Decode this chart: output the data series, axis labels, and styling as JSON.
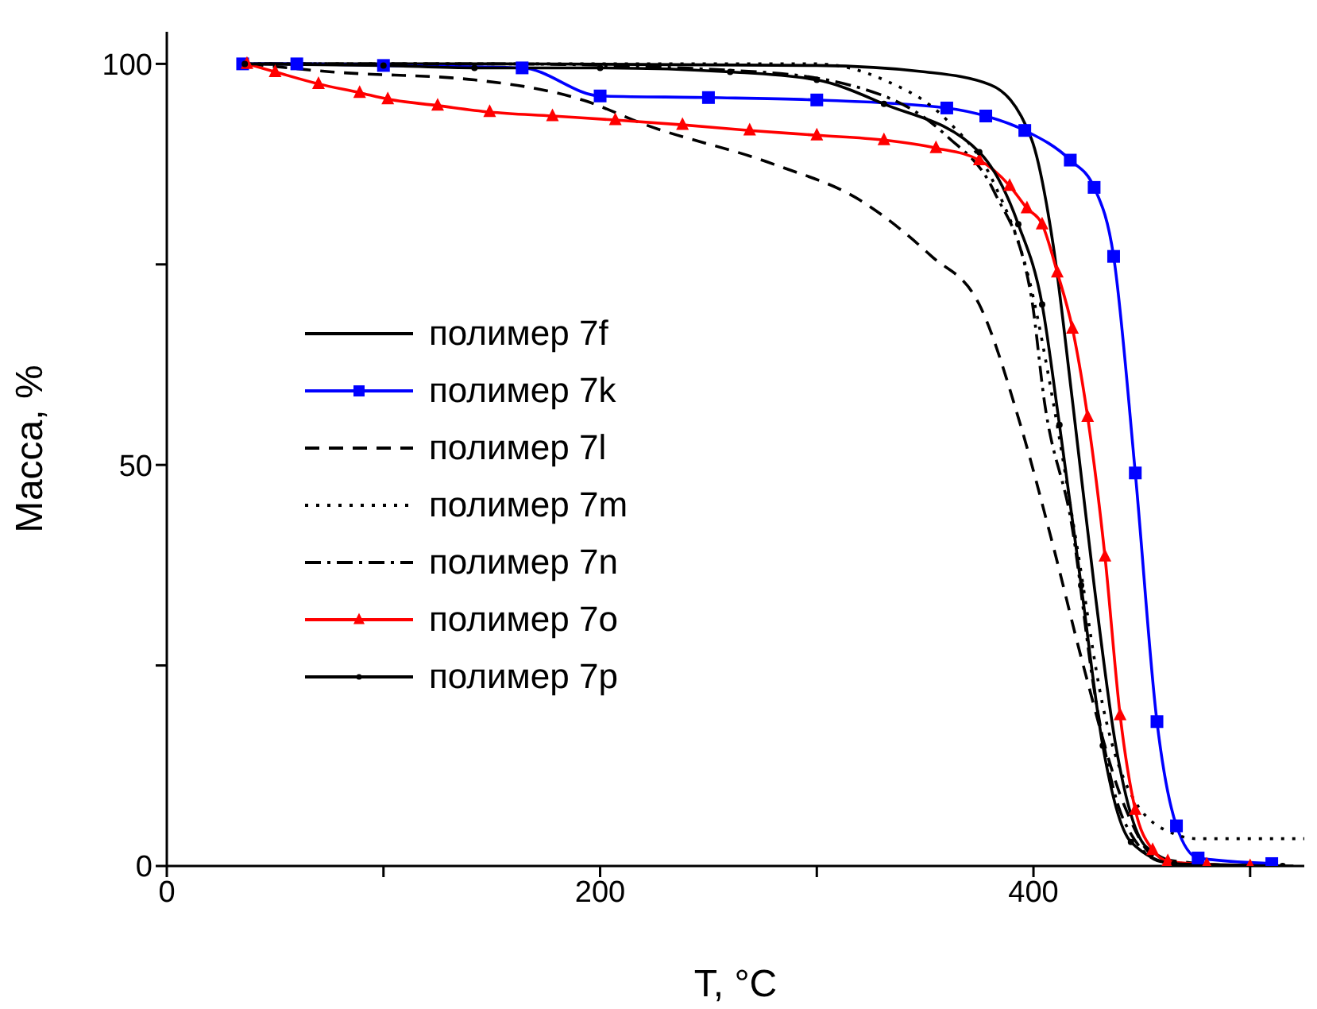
{
  "chart_data": {
    "type": "line",
    "xlabel": "T, °C",
    "ylabel": "Масса, %",
    "xlim": [
      0,
      525
    ],
    "xticks": [
      0,
      {
        "value": 100,
        "label": null
      },
      200,
      {
        "value": 300,
        "label": null
      },
      400,
      {
        "value": 500,
        "label": null
      }
    ],
    "ylim": [
      0,
      104
    ],
    "yticks": [
      0,
      {
        "value": 25,
        "label": null
      },
      50,
      {
        "value": 75,
        "label": null
      },
      100
    ],
    "grid": false,
    "legend": "left",
    "series": [
      {
        "name": "полимер 7f",
        "color": "#000000",
        "line_style": "solid",
        "marker": "none",
        "x": [
          40,
          150,
          300,
          350,
          380,
          399,
          409,
          418,
          428,
          438,
          452,
          470,
          520
        ],
        "values": [
          100,
          100,
          99.8,
          99,
          97.4,
          90.7,
          77.6,
          58,
          35,
          15,
          2.4,
          0.3,
          0
        ]
      },
      {
        "name": "полимер 7k",
        "color": "#0000ff",
        "line_style": "solid",
        "marker": "square",
        "x": [
          35,
          60,
          100,
          164,
          200,
          250,
          300,
          360,
          378,
          396,
          417,
          428,
          437,
          447,
          457,
          466,
          476,
          510
        ],
        "values": [
          100,
          100,
          99.8,
          99.5,
          96,
          95.8,
          95.5,
          94.5,
          93.5,
          91.7,
          88,
          84.6,
          76,
          49,
          18,
          5,
          1,
          0.3
        ]
      },
      {
        "name": "полимер 7l",
        "color": "#000000",
        "line_style": "dashed",
        "marker": "none",
        "x": [
          38,
          76,
          142,
          193,
          220,
          280,
          320,
          353,
          375,
          394,
          409,
          423,
          442,
          457,
          495
        ],
        "values": [
          100,
          99,
          98,
          95.4,
          92.5,
          87.5,
          83,
          76,
          70,
          55,
          40,
          25,
          7.5,
          1,
          0
        ]
      },
      {
        "name": "полимер 7m",
        "color": "#000000",
        "line_style": "dotted",
        "marker": "none",
        "x": [
          42,
          150,
          300,
          331,
          360,
          382,
          399,
          409,
          420,
          432,
          447,
          465,
          476,
          525
        ],
        "values": [
          100,
          100,
          100,
          98,
          93,
          85,
          72,
          58,
          40,
          20,
          8,
          4,
          3.4,
          3.4
        ]
      },
      {
        "name": "полимер 7n",
        "color": "#000000",
        "line_style": "dashdot",
        "marker": "none",
        "x": [
          45,
          150,
          273,
          331,
          360,
          382,
          399,
          405,
          418,
          428,
          442,
          460,
          505
        ],
        "values": [
          100,
          100,
          99,
          96,
          91,
          84,
          71,
          58,
          42,
          22,
          5.5,
          0.5,
          0
        ]
      },
      {
        "name": "полимер 7o",
        "color": "#ff0000",
        "line_style": "solid",
        "marker": "triangle",
        "x": [
          37,
          50,
          70,
          89,
          102,
          125,
          149,
          178,
          207,
          238,
          269,
          300,
          331,
          355,
          375,
          389,
          397,
          404,
          411,
          418,
          425,
          433,
          440,
          447,
          455,
          462,
          480,
          500
        ],
        "values": [
          100,
          99,
          97.5,
          96.4,
          95.6,
          94.8,
          94,
          93.5,
          93,
          92.4,
          91.7,
          91.1,
          90.5,
          89.5,
          88,
          84.8,
          82,
          80,
          74,
          67,
          56,
          38.6,
          18.8,
          7,
          2,
          0.6,
          0.2,
          0
        ]
      },
      {
        "name": "полимер 7p",
        "color": "#000000",
        "line_style": "solid",
        "marker": "circle",
        "x": [
          36,
          100,
          142,
          200,
          260,
          300,
          331,
          375,
          393,
          404,
          412,
          422,
          432,
          445,
          465,
          515
        ],
        "values": [
          100,
          99.8,
          99.5,
          99.5,
          99,
          98,
          95,
          89,
          80,
          70,
          55,
          35,
          15,
          3,
          0.3,
          0
        ]
      }
    ]
  }
}
